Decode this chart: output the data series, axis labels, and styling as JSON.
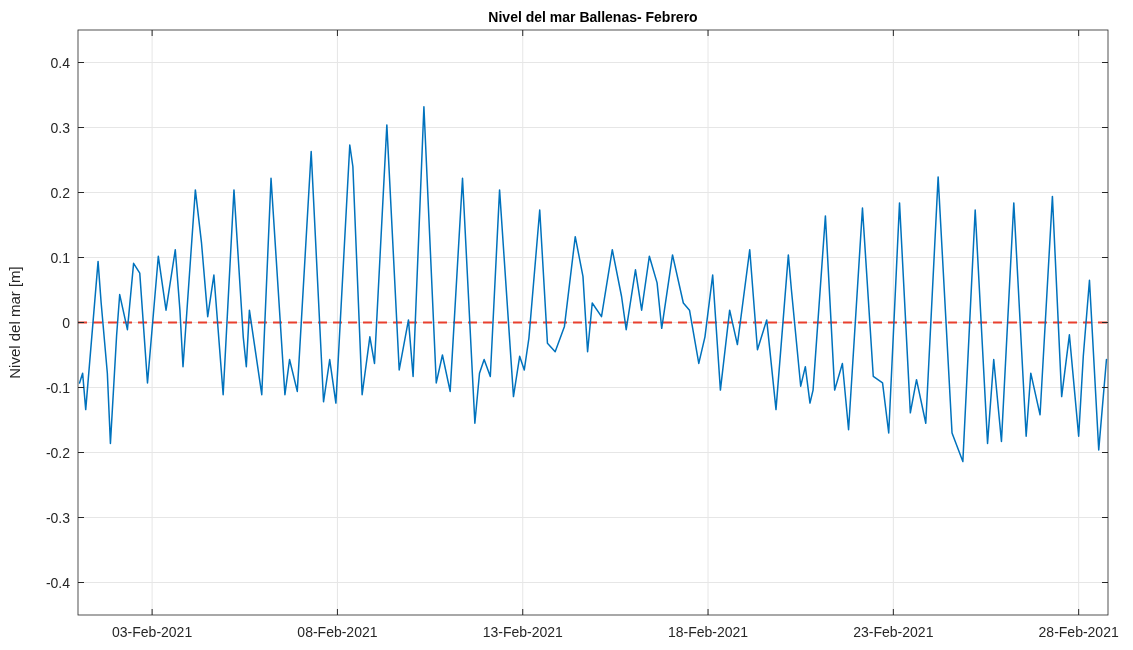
{
  "chart_data": {
    "type": "line",
    "title": "Nivel del mar Ballenas- Febrero",
    "ylabel": "Nivel del mar [m]",
    "x": [
      "2021-02-01T01:00",
      "2021-02-01T03:00",
      "2021-02-01T05:00",
      "2021-02-01T13:00",
      "2021-02-01T15:00",
      "2021-02-01T19:00",
      "2021-02-01T21:00",
      "2021-02-02T01:00",
      "2021-02-02T03:00",
      "2021-02-02T08:00",
      "2021-02-02T12:00",
      "2021-02-02T16:00",
      "2021-02-02T21:00",
      "2021-02-03T04:00",
      "2021-02-03T09:00",
      "2021-02-03T15:00",
      "2021-02-03T18:00",
      "2021-02-03T20:00",
      "2021-02-04T04:00",
      "2021-02-04T08:00",
      "2021-02-04T12:00",
      "2021-02-04T16:00",
      "2021-02-04T22:00",
      "2021-02-05T05:00",
      "2021-02-05T11:00",
      "2021-02-05T13:00",
      "2021-02-05T15:00",
      "2021-02-05T23:00",
      "2021-02-06T05:00",
      "2021-02-06T14:00",
      "2021-02-06T17:00",
      "2021-02-06T22:00",
      "2021-02-07T07:00",
      "2021-02-07T15:00",
      "2021-02-07T19:00",
      "2021-02-07T23:00",
      "2021-02-08T08:00",
      "2021-02-08T10:00",
      "2021-02-08T16:00",
      "2021-02-08T21:00",
      "2021-02-09T00:00",
      "2021-02-09T08:00",
      "2021-02-09T16:00",
      "2021-02-09T22:00",
      "2021-02-10T01:00",
      "2021-02-10T08:00",
      "2021-02-10T16:00",
      "2021-02-10T20:00",
      "2021-02-11T01:00",
      "2021-02-11T09:00",
      "2021-02-11T17:00",
      "2021-02-11T20:00",
      "2021-02-11T23:00",
      "2021-02-12T03:00",
      "2021-02-12T09:00",
      "2021-02-12T18:00",
      "2021-02-12T22:00",
      "2021-02-13T01:00",
      "2021-02-13T04:00",
      "2021-02-13T11:00",
      "2021-02-13T16:00",
      "2021-02-13T21:00",
      "2021-02-14T03:00",
      "2021-02-14T10:00",
      "2021-02-14T15:00",
      "2021-02-14T18:00",
      "2021-02-14T21:00",
      "2021-02-15T03:00",
      "2021-02-15T10:00",
      "2021-02-15T16:00",
      "2021-02-15T19:00",
      "2021-02-16T01:00",
      "2021-02-16T05:00",
      "2021-02-16T10:00",
      "2021-02-16T15:00",
      "2021-02-16T18:00",
      "2021-02-17T01:00",
      "2021-02-17T08:00",
      "2021-02-17T12:00",
      "2021-02-17T18:00",
      "2021-02-17T22:00",
      "2021-02-18T03:00",
      "2021-02-18T08:00",
      "2021-02-18T14:00",
      "2021-02-18T19:00",
      "2021-02-19T03:00",
      "2021-02-19T08:00",
      "2021-02-19T14:00",
      "2021-02-19T20:00",
      "2021-02-20T04:00",
      "2021-02-20T06:00",
      "2021-02-20T12:00",
      "2021-02-20T15:00",
      "2021-02-20T18:00",
      "2021-02-20T20:00",
      "2021-02-21T04:00",
      "2021-02-21T10:00",
      "2021-02-21T15:00",
      "2021-02-21T19:00",
      "2021-02-22T04:00",
      "2021-02-22T11:00",
      "2021-02-22T17:00",
      "2021-02-22T21:00",
      "2021-02-23T04:00",
      "2021-02-23T11:00",
      "2021-02-23T15:00",
      "2021-02-23T21:00",
      "2021-02-24T05:00",
      "2021-02-24T14:00",
      "2021-02-24T21:00",
      "2021-02-25T05:00",
      "2021-02-25T13:00",
      "2021-02-25T17:00",
      "2021-02-25T22:00",
      "2021-02-26T06:00",
      "2021-02-26T14:00",
      "2021-02-26T17:00",
      "2021-02-26T23:00",
      "2021-02-27T07:00",
      "2021-02-27T13:00",
      "2021-02-27T18:00",
      "2021-02-28T00:00",
      "2021-02-28T03:00",
      "2021-02-28T07:00",
      "2021-02-28T13:00",
      "2021-02-28T18:00"
    ],
    "series": [
      {
        "color": "#0072bd",
        "values": [
          -0.093,
          -0.078,
          -0.134,
          0.094,
          0.03,
          -0.078,
          -0.186,
          -0.02,
          0.043,
          -0.011,
          0.091,
          0.076,
          -0.093,
          0.102,
          0.019,
          0.112,
          0.019,
          -0.068,
          0.204,
          0.122,
          0.009,
          0.073,
          -0.111,
          0.204,
          -0.022,
          -0.068,
          0.019,
          -0.111,
          0.222,
          -0.111,
          -0.057,
          -0.106,
          0.263,
          -0.122,
          -0.057,
          -0.124,
          0.273,
          0.24,
          -0.111,
          -0.022,
          -0.063,
          0.304,
          -0.073,
          0.004,
          -0.083,
          0.332,
          -0.093,
          -0.05,
          -0.106,
          0.222,
          -0.155,
          -0.078,
          -0.057,
          -0.083,
          0.204,
          -0.114,
          -0.052,
          -0.073,
          -0.024,
          0.173,
          -0.032,
          -0.045,
          -0.006,
          0.132,
          0.071,
          -0.045,
          0.03,
          0.009,
          0.112,
          0.04,
          -0.011,
          0.081,
          0.019,
          0.102,
          0.061,
          -0.009,
          0.104,
          0.03,
          0.019,
          -0.063,
          -0.022,
          0.073,
          -0.104,
          0.019,
          -0.034,
          0.112,
          -0.042,
          0.004,
          -0.134,
          0.104,
          0.05,
          -0.098,
          -0.068,
          -0.124,
          -0.104,
          0.164,
          -0.104,
          -0.063,
          -0.165,
          0.176,
          -0.083,
          -0.093,
          -0.17,
          0.184,
          -0.139,
          -0.088,
          -0.155,
          0.224,
          -0.17,
          -0.214,
          0.173,
          -0.186,
          -0.057,
          -0.183,
          0.184,
          -0.175,
          -0.078,
          -0.142,
          0.194,
          -0.114,
          -0.019,
          -0.175,
          -0.052,
          0.065,
          -0.196,
          -0.057
        ]
      }
    ],
    "xlim": [
      "2021-02-01T00:00",
      "2021-02-28T19:00"
    ],
    "xticks": [
      {
        "value": "2021-02-03",
        "label": "03-Feb-2021"
      },
      {
        "value": "2021-02-08",
        "label": "08-Feb-2021"
      },
      {
        "value": "2021-02-13",
        "label": "13-Feb-2021"
      },
      {
        "value": "2021-02-18",
        "label": "18-Feb-2021"
      },
      {
        "value": "2021-02-23",
        "label": "23-Feb-2021"
      },
      {
        "value": "2021-02-28",
        "label": "28-Feb-2021"
      }
    ],
    "ylim": [
      -0.45,
      0.45
    ],
    "yticks": [
      -0.4,
      -0.3,
      -0.2,
      -0.1,
      0,
      0.1,
      0.2,
      0.3,
      0.4
    ],
    "grid": true,
    "line_style": "solid",
    "ref_lines": [
      {
        "axis": "y",
        "value": 0,
        "color": "#e8402f",
        "line_style": "dashed"
      }
    ]
  }
}
